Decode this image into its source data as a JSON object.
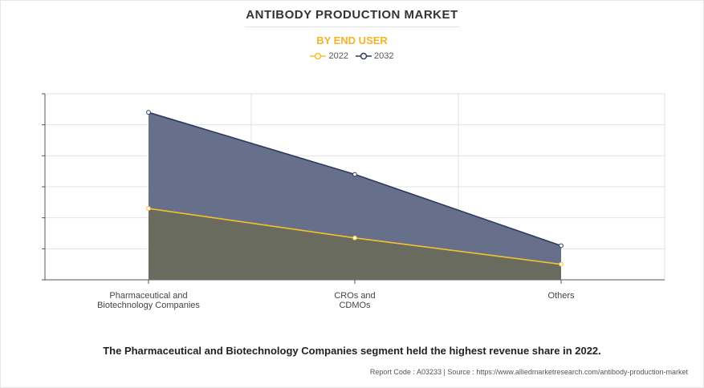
{
  "title": "ANTIBODY PRODUCTION MARKET",
  "subtitle": "BY END USER",
  "headline": "The Pharmaceutical and Biotechnology Companies segment held the highest revenue share in 2022.",
  "footer": {
    "report_code": "Report Code : A03233",
    "separator": "|",
    "source": "Source : https://www.alliedmarketresearch.com/antibody-production-market"
  },
  "colors": {
    "series_2022": "#f5c22b",
    "series_2032": "#2d3a5e",
    "area_2032": "#66708a",
    "area_2022": "#686b5d",
    "grid": "#e2e2e2",
    "axis": "#555555"
  },
  "chart_data": {
    "type": "area",
    "categories": [
      [
        "Pharmaceutical  and",
        "Biotechnology Companies"
      ],
      [
        "CROs and",
        "CDMOs"
      ],
      [
        "Others"
      ]
    ],
    "series": [
      {
        "name": "2022",
        "values": [
          2.3,
          1.35,
          0.5
        ]
      },
      {
        "name": "2032",
        "values": [
          5.4,
          3.4,
          1.1
        ]
      }
    ],
    "ylim": [
      0,
      6
    ],
    "yticks": 6,
    "xlabel": "",
    "ylabel": "",
    "grid": true,
    "legend": "top-center"
  }
}
